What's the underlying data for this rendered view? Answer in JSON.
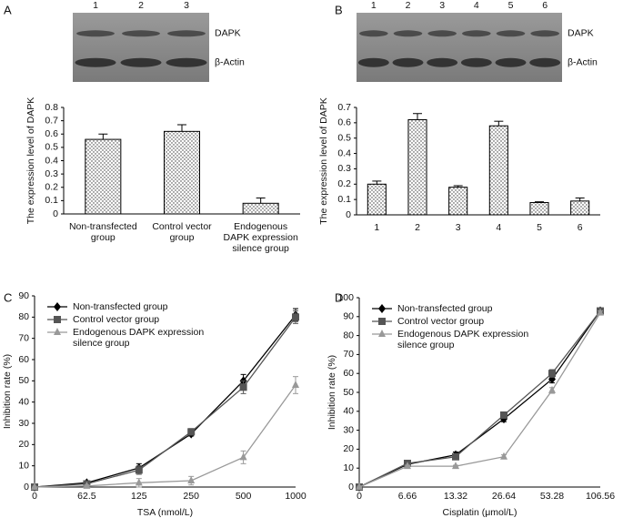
{
  "chart_data": [
    {
      "type": "bar",
      "panel_label": "A",
      "blot_lanes": [
        "1",
        "2",
        "3"
      ],
      "blot_bands": [
        "DAPK",
        "β-Actin"
      ],
      "y_label": "The expression level of DAPK",
      "categories": [
        "Non-transfected\ngroup",
        "Control vector\ngroup",
        "Endogenous\nDAPK expression\nsilence group"
      ],
      "values": [
        0.56,
        0.62,
        0.08
      ],
      "errors": [
        0.04,
        0.05,
        0.04
      ],
      "ylim": [
        0,
        0.8
      ],
      "yticks": [
        0,
        0.1,
        0.2,
        0.3,
        0.4,
        0.5,
        0.6,
        0.7,
        0.8
      ]
    },
    {
      "type": "bar",
      "panel_label": "B",
      "blot_lanes": [
        "1",
        "2",
        "3",
        "4",
        "5",
        "6"
      ],
      "blot_bands": [
        "DAPK",
        "β-Actin"
      ],
      "y_label": "The expression level of DAPK",
      "categories": [
        "1",
        "2",
        "3",
        "4",
        "5",
        "6"
      ],
      "values": [
        0.2,
        0.62,
        0.18,
        0.58,
        0.08,
        0.09
      ],
      "errors": [
        0.02,
        0.04,
        0.01,
        0.03,
        0.005,
        0.02
      ],
      "ylim": [
        0,
        0.7
      ],
      "yticks": [
        0,
        0.1,
        0.2,
        0.3,
        0.4,
        0.5,
        0.6,
        0.7
      ]
    },
    {
      "type": "line",
      "panel_label": "C",
      "x_label": "TSA (nmol/L)",
      "y_label": "Inhibition rate (%)",
      "categories": [
        "0",
        "62.5",
        "125",
        "250",
        "500",
        "1000"
      ],
      "ylim": [
        0,
        90
      ],
      "yticks": [
        0,
        10,
        20,
        30,
        40,
        50,
        60,
        70,
        80,
        90
      ],
      "series": [
        {
          "name": "Non-transfected group",
          "color": "#000000",
          "marker": "diamond",
          "values": [
            0,
            2,
            9,
            25,
            50,
            81
          ],
          "errors": [
            0,
            1,
            2,
            1,
            3,
            3
          ]
        },
        {
          "name": "Control vector group",
          "color": "#555555",
          "marker": "square",
          "values": [
            0,
            1.5,
            8,
            26,
            47,
            80
          ],
          "errors": [
            0,
            1,
            2,
            1.5,
            3,
            3
          ]
        },
        {
          "name": "Endogenous DAPK expression\nsilence group",
          "color": "#999999",
          "marker": "triangle",
          "values": [
            0,
            0.5,
            2,
            3,
            14,
            48
          ],
          "errors": [
            0,
            0.5,
            2,
            2,
            3,
            4
          ]
        }
      ]
    },
    {
      "type": "line",
      "panel_label": "D",
      "x_label": "Cisplatin (μmol/L)",
      "y_label": "Inhibition rate (%)",
      "categories": [
        "0",
        "6.66",
        "13.32",
        "26.64",
        "53.28",
        "106.56"
      ],
      "ylim": [
        0,
        100
      ],
      "yticks": [
        0,
        10,
        20,
        30,
        40,
        50,
        60,
        70,
        80,
        90,
        100
      ],
      "series": [
        {
          "name": "Non-transfected group",
          "color": "#000000",
          "marker": "diamond",
          "values": [
            0,
            12,
            17,
            36,
            57,
            93
          ],
          "errors": [
            0,
            1,
            1.5,
            1.5,
            2,
            1
          ]
        },
        {
          "name": "Control vector group",
          "color": "#555555",
          "marker": "square",
          "values": [
            0,
            12.5,
            16,
            38,
            60,
            93
          ],
          "errors": [
            0,
            1,
            1.5,
            1.5,
            2,
            1
          ]
        },
        {
          "name": "Endogenous DAPK expression\nsilence group",
          "color": "#999999",
          "marker": "triangle",
          "values": [
            0,
            11,
            11,
            16,
            51,
            92
          ],
          "errors": [
            0,
            0.5,
            0.5,
            1,
            1.5,
            1
          ]
        }
      ]
    }
  ]
}
